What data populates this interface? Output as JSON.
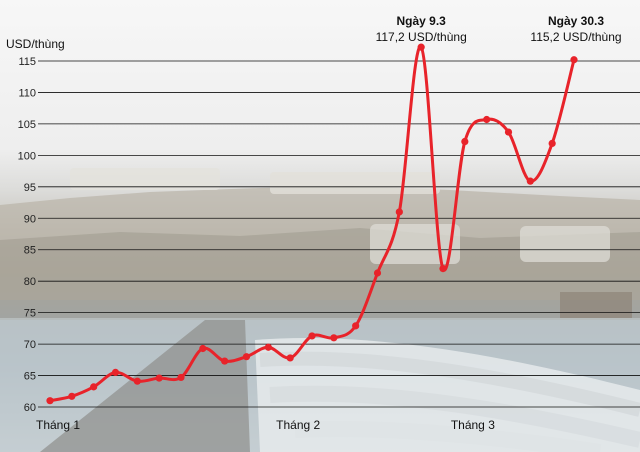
{
  "chart_data": {
    "type": "line",
    "ylabel": "USD/thùng",
    "ylim": [
      60,
      115
    ],
    "yticks": [
      60,
      65,
      70,
      75,
      80,
      85,
      90,
      95,
      100,
      105,
      110,
      115
    ],
    "grid": true,
    "month_labels": [
      {
        "label": "Tháng 1",
        "at": 0
      },
      {
        "label": "Tháng 2",
        "at": 11
      },
      {
        "label": "Tháng 3",
        "at": 19
      }
    ],
    "values": [
      61.0,
      61.7,
      63.2,
      65.5,
      64.1,
      64.6,
      64.7,
      69.3,
      67.3,
      68.0,
      69.5,
      67.8,
      71.3,
      71.0,
      72.9,
      81.3,
      91.0,
      117.2,
      82.0,
      102.2,
      105.7,
      103.7,
      95.9,
      101.9,
      115.2
    ],
    "line_color": "#e8232a",
    "annotations": [
      {
        "title": "Ngày 9.3",
        "value": "117,2 USD/thùng",
        "index": 17
      },
      {
        "title": "Ngày 30.3",
        "value": "115,2 USD/thùng",
        "index": 24
      }
    ]
  }
}
